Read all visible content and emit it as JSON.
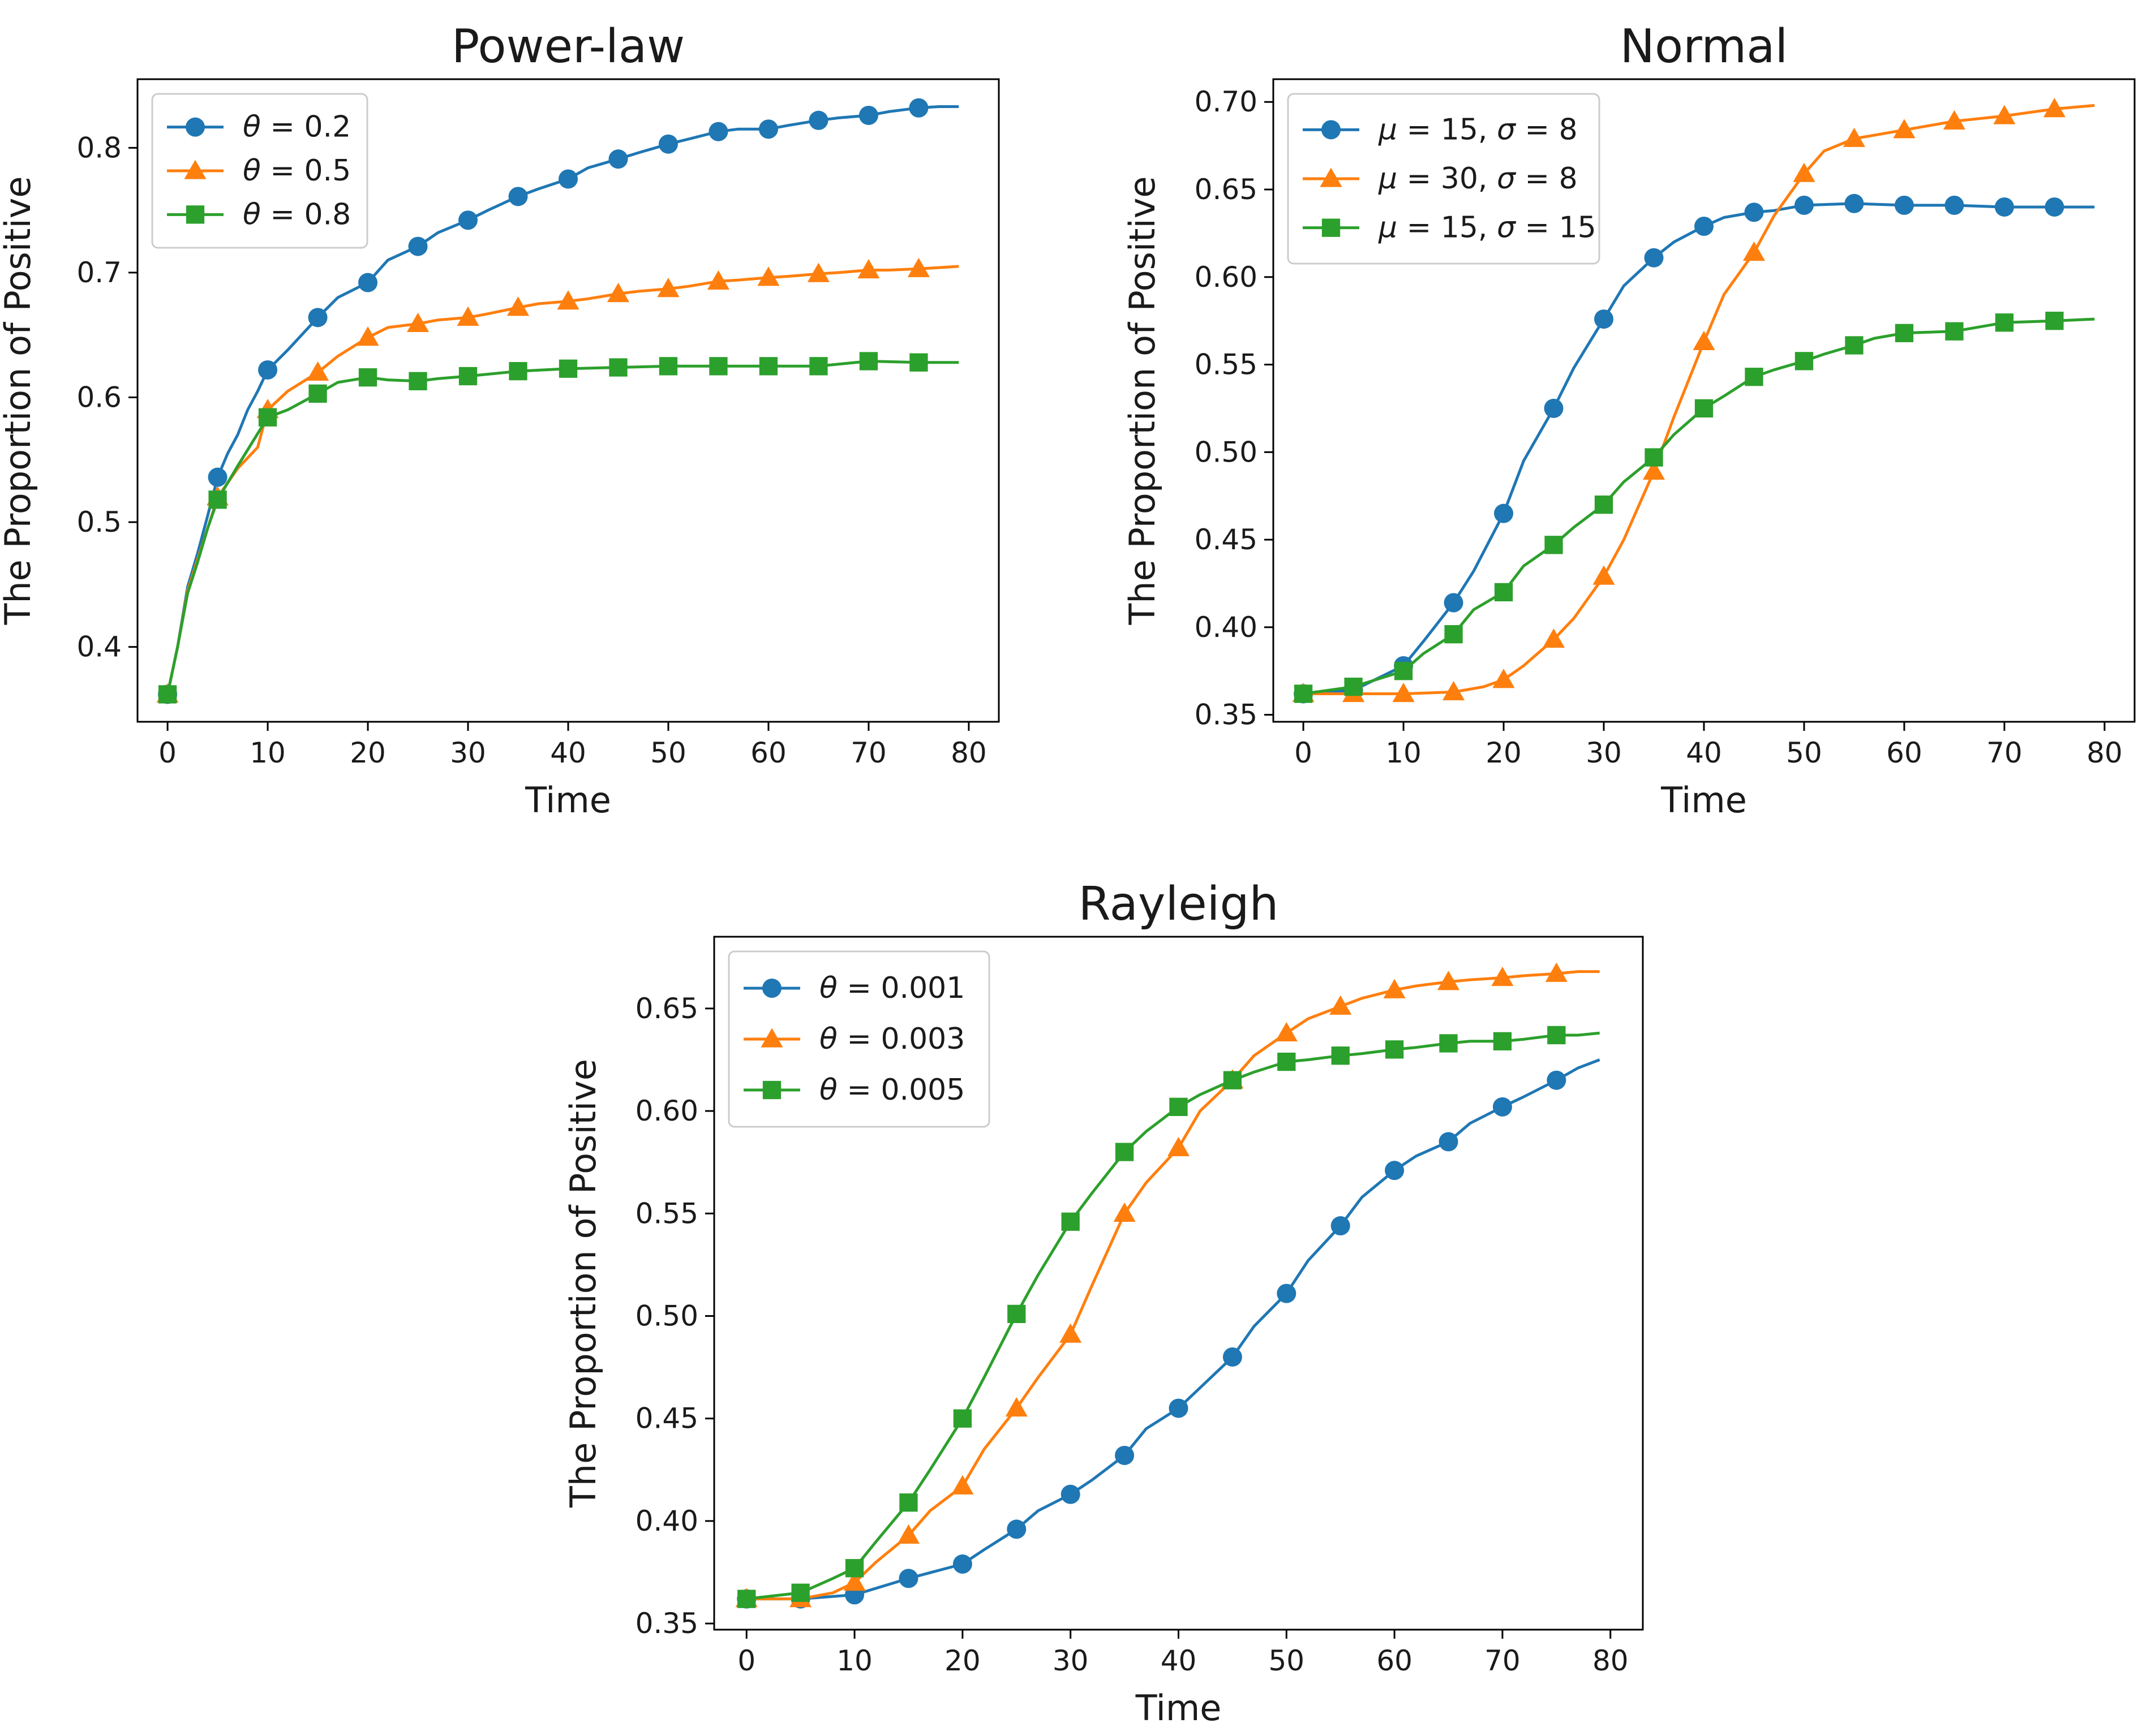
{
  "chart_data": [
    {
      "type": "line",
      "title": "Power-law",
      "xlabel": "Time",
      "ylabel": "The Proportion of Positive",
      "xlim": [
        -3,
        83
      ],
      "ylim": [
        0.34,
        0.855
      ],
      "xticks": [
        0,
        10,
        20,
        30,
        40,
        50,
        60,
        70,
        80
      ],
      "yticks": [
        0.4,
        0.5,
        0.6,
        0.7,
        0.8
      ],
      "yticks_labels": [
        "0.4",
        "0.5",
        "0.6",
        "0.7",
        "0.8"
      ],
      "legend_position": "top-left",
      "marker_x": [
        0,
        5,
        10,
        15,
        20,
        25,
        30,
        35,
        40,
        45,
        50,
        55,
        60,
        65,
        70,
        75
      ],
      "series": [
        {
          "name": "θ = 0.2",
          "color": "#1f77b4",
          "marker": "circle",
          "x": [
            0,
            1,
            2,
            3,
            4,
            5,
            6,
            7,
            8,
            9,
            10,
            12,
            15,
            17,
            20,
            22,
            25,
            27,
            30,
            32,
            35,
            37,
            40,
            42,
            45,
            47,
            50,
            52,
            55,
            57,
            60,
            62,
            65,
            67,
            70,
            72,
            75,
            77,
            79
          ],
          "y": [
            0.362,
            0.4,
            0.448,
            0.475,
            0.505,
            0.536,
            0.555,
            0.57,
            0.59,
            0.605,
            0.622,
            0.638,
            0.664,
            0.68,
            0.692,
            0.71,
            0.721,
            0.732,
            0.742,
            0.75,
            0.761,
            0.767,
            0.775,
            0.784,
            0.791,
            0.796,
            0.803,
            0.807,
            0.813,
            0.815,
            0.815,
            0.818,
            0.822,
            0.824,
            0.826,
            0.829,
            0.832,
            0.833,
            0.833
          ]
        },
        {
          "name": "θ = 0.5",
          "color": "#ff7f0e",
          "marker": "triangle",
          "x": [
            0,
            1,
            2,
            3,
            4,
            5,
            7,
            9,
            10,
            12,
            15,
            17,
            20,
            22,
            25,
            27,
            30,
            32,
            35,
            37,
            40,
            42,
            45,
            47,
            50,
            52,
            55,
            57,
            60,
            62,
            65,
            67,
            70,
            72,
            75,
            77,
            79
          ],
          "y": [
            0.362,
            0.4,
            0.445,
            0.47,
            0.495,
            0.52,
            0.543,
            0.56,
            0.59,
            0.605,
            0.62,
            0.633,
            0.648,
            0.656,
            0.659,
            0.662,
            0.664,
            0.667,
            0.672,
            0.675,
            0.677,
            0.679,
            0.683,
            0.685,
            0.687,
            0.689,
            0.693,
            0.694,
            0.696,
            0.697,
            0.699,
            0.7,
            0.702,
            0.702,
            0.703,
            0.704,
            0.705
          ]
        },
        {
          "name": "θ = 0.8",
          "color": "#2ca02c",
          "marker": "square",
          "x": [
            0,
            1,
            2,
            3,
            4,
            5,
            7,
            10,
            12,
            15,
            17,
            20,
            22,
            25,
            27,
            30,
            35,
            40,
            45,
            50,
            55,
            60,
            65,
            70,
            75,
            79
          ],
          "y": [
            0.362,
            0.4,
            0.443,
            0.468,
            0.495,
            0.518,
            0.545,
            0.584,
            0.59,
            0.603,
            0.612,
            0.616,
            0.614,
            0.613,
            0.615,
            0.617,
            0.621,
            0.623,
            0.624,
            0.625,
            0.625,
            0.625,
            0.625,
            0.629,
            0.628,
            0.628
          ]
        }
      ]
    },
    {
      "type": "line",
      "title": "Normal",
      "xlabel": "Time",
      "ylabel": "The Proportion of Positive",
      "xlim": [
        -3,
        83
      ],
      "ylim": [
        0.346,
        0.713
      ],
      "xticks": [
        0,
        10,
        20,
        30,
        40,
        50,
        60,
        70,
        80
      ],
      "yticks": [
        0.35,
        0.4,
        0.45,
        0.5,
        0.55,
        0.6,
        0.65,
        0.7
      ],
      "yticks_labels": [
        "0.35",
        "0.40",
        "0.45",
        "0.50",
        "0.55",
        "0.60",
        "0.65",
        "0.70"
      ],
      "legend_position": "top-left",
      "marker_x": [
        0,
        5,
        10,
        15,
        20,
        25,
        30,
        35,
        40,
        45,
        50,
        55,
        60,
        65,
        70,
        75
      ],
      "series": [
        {
          "name": "μ = 15, σ = 8",
          "color": "#1f77b4",
          "marker": "circle",
          "mu": "15",
          "sigma": "8",
          "x": [
            0,
            5,
            10,
            12,
            15,
            17,
            20,
            22,
            25,
            27,
            30,
            32,
            35,
            37,
            40,
            42,
            45,
            47,
            50,
            55,
            60,
            65,
            70,
            75,
            79
          ],
          "y": [
            0.362,
            0.364,
            0.378,
            0.392,
            0.414,
            0.432,
            0.465,
            0.495,
            0.525,
            0.548,
            0.576,
            0.595,
            0.611,
            0.62,
            0.629,
            0.634,
            0.637,
            0.638,
            0.641,
            0.642,
            0.641,
            0.641,
            0.64,
            0.64,
            0.64
          ]
        },
        {
          "name": "μ = 30, σ = 8",
          "color": "#ff7f0e",
          "marker": "triangle",
          "mu": "30",
          "sigma": "8",
          "x": [
            0,
            5,
            10,
            15,
            18,
            20,
            22,
            25,
            27,
            30,
            32,
            35,
            37,
            40,
            42,
            45,
            47,
            50,
            52,
            55,
            60,
            65,
            70,
            75,
            79
          ],
          "y": [
            0.362,
            0.362,
            0.362,
            0.363,
            0.366,
            0.37,
            0.378,
            0.393,
            0.405,
            0.429,
            0.45,
            0.489,
            0.52,
            0.563,
            0.59,
            0.614,
            0.635,
            0.659,
            0.672,
            0.679,
            0.684,
            0.689,
            0.692,
            0.696,
            0.698
          ]
        },
        {
          "name": "μ = 15, σ = 15",
          "color": "#2ca02c",
          "marker": "square",
          "mu": "15",
          "sigma": "15",
          "x": [
            0,
            5,
            10,
            12,
            15,
            17,
            20,
            22,
            25,
            27,
            30,
            32,
            35,
            37,
            40,
            42,
            45,
            47,
            50,
            52,
            55,
            57,
            60,
            65,
            70,
            75,
            79
          ],
          "y": [
            0.362,
            0.366,
            0.375,
            0.385,
            0.396,
            0.41,
            0.42,
            0.435,
            0.447,
            0.457,
            0.47,
            0.483,
            0.497,
            0.51,
            0.525,
            0.532,
            0.543,
            0.547,
            0.552,
            0.556,
            0.561,
            0.565,
            0.568,
            0.569,
            0.574,
            0.575,
            0.576
          ]
        }
      ]
    },
    {
      "type": "line",
      "title": "Rayleigh",
      "xlabel": "Time",
      "ylabel": "The Proportion of Positive",
      "xlim": [
        -3,
        83
      ],
      "ylim": [
        0.347,
        0.685
      ],
      "xticks": [
        0,
        10,
        20,
        30,
        40,
        50,
        60,
        70,
        80
      ],
      "yticks": [
        0.35,
        0.4,
        0.45,
        0.5,
        0.55,
        0.6,
        0.65
      ],
      "yticks_labels": [
        "0.35",
        "0.40",
        "0.45",
        "0.50",
        "0.55",
        "0.60",
        "0.65"
      ],
      "legend_position": "top-left",
      "marker_x": [
        0,
        5,
        10,
        15,
        20,
        25,
        30,
        35,
        40,
        45,
        50,
        55,
        60,
        65,
        70,
        75
      ],
      "series": [
        {
          "name": "θ = 0.001",
          "color": "#1f77b4",
          "marker": "circle",
          "x": [
            0,
            5,
            10,
            15,
            20,
            22,
            25,
            27,
            30,
            32,
            35,
            37,
            40,
            42,
            45,
            47,
            50,
            52,
            55,
            57,
            60,
            62,
            65,
            67,
            70,
            72,
            75,
            77,
            79
          ],
          "y": [
            0.362,
            0.362,
            0.364,
            0.372,
            0.379,
            0.386,
            0.396,
            0.405,
            0.413,
            0.42,
            0.432,
            0.445,
            0.455,
            0.465,
            0.48,
            0.495,
            0.511,
            0.527,
            0.544,
            0.558,
            0.571,
            0.578,
            0.585,
            0.594,
            0.602,
            0.607,
            0.615,
            0.621,
            0.625
          ]
        },
        {
          "name": "θ = 0.003",
          "color": "#ff7f0e",
          "marker": "triangle",
          "x": [
            0,
            5,
            8,
            10,
            12,
            15,
            17,
            20,
            22,
            25,
            27,
            30,
            32,
            35,
            37,
            40,
            42,
            45,
            47,
            50,
            52,
            55,
            57,
            60,
            62,
            65,
            67,
            70,
            72,
            75,
            77,
            79
          ],
          "y": [
            0.362,
            0.362,
            0.365,
            0.37,
            0.38,
            0.393,
            0.405,
            0.417,
            0.435,
            0.455,
            0.47,
            0.491,
            0.515,
            0.55,
            0.565,
            0.582,
            0.6,
            0.615,
            0.627,
            0.638,
            0.645,
            0.651,
            0.655,
            0.659,
            0.661,
            0.663,
            0.664,
            0.665,
            0.666,
            0.667,
            0.668,
            0.668
          ]
        },
        {
          "name": "θ = 0.005",
          "color": "#2ca02c",
          "marker": "square",
          "x": [
            0,
            5,
            8,
            10,
            12,
            15,
            17,
            20,
            22,
            25,
            27,
            30,
            32,
            35,
            37,
            40,
            42,
            45,
            47,
            50,
            52,
            55,
            57,
            60,
            62,
            65,
            67,
            70,
            72,
            75,
            77,
            79
          ],
          "y": [
            0.362,
            0.365,
            0.372,
            0.377,
            0.39,
            0.409,
            0.425,
            0.45,
            0.47,
            0.501,
            0.52,
            0.546,
            0.56,
            0.58,
            0.59,
            0.602,
            0.608,
            0.615,
            0.619,
            0.624,
            0.625,
            0.627,
            0.628,
            0.63,
            0.631,
            0.633,
            0.634,
            0.634,
            0.635,
            0.637,
            0.637,
            0.638
          ]
        }
      ]
    }
  ]
}
